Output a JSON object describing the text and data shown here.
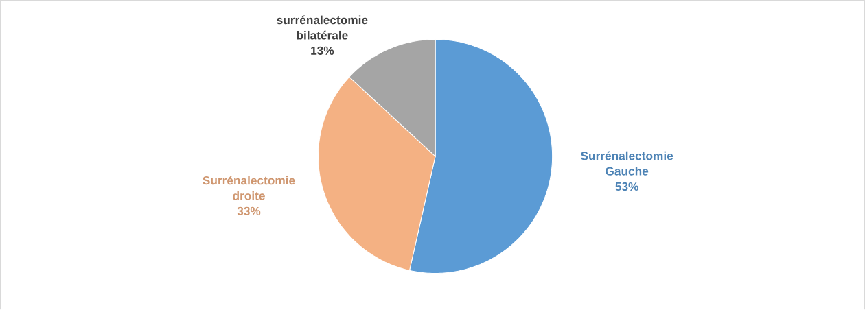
{
  "chart_data": {
    "type": "pie",
    "categories": [
      "Surrénalectomie Gauche",
      "Surrénalectomie droite",
      "surrénalectomie bilatérale"
    ],
    "values": [
      53,
      33,
      13
    ],
    "value_labels": [
      "53%",
      "33%",
      "13%"
    ],
    "colors": [
      "#5b9bd5",
      "#f4b183",
      "#a5a5a5"
    ],
    "legend": false
  }
}
